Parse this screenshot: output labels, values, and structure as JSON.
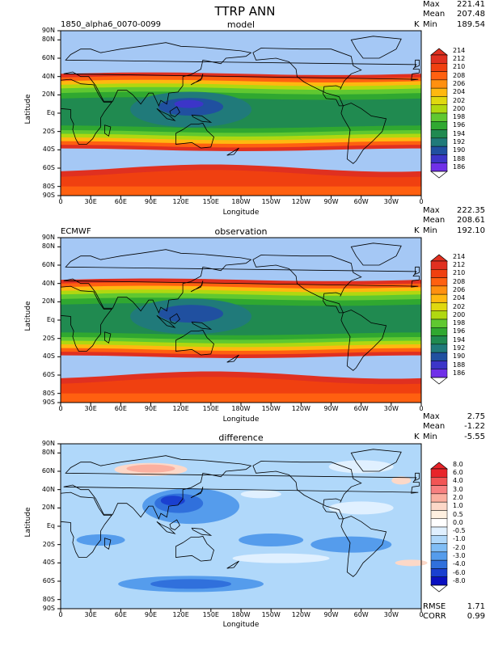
{
  "figure": {
    "title": "TTRP ANN",
    "xlabel": "Longitude",
    "ylabel": "Latitude"
  },
  "chart_data": [
    {
      "type": "heatmap",
      "panel_title": "model",
      "left_label": "1850_alpha6_0070-0099",
      "units": "K",
      "stats": {
        "max_label": "Max",
        "max": "221.41",
        "mean_label": "Mean",
        "mean": "207.48",
        "min_label": "Min",
        "min": "189.54"
      },
      "x_ticks": [
        "0",
        "30E",
        "60E",
        "90E",
        "120E",
        "150E",
        "180W",
        "150W",
        "120W",
        "90W",
        "60W",
        "30W",
        "0"
      ],
      "y_ticks": [
        "90N",
        "80N",
        "60N",
        "40N",
        "20N",
        "Eq",
        "20S",
        "40S",
        "60S",
        "80S",
        "90S"
      ],
      "colorbar": [
        "214",
        "212",
        "210",
        "208",
        "206",
        "204",
        "202",
        "200",
        "198",
        "196",
        "194",
        "192",
        "190",
        "188",
        "186"
      ],
      "colors": [
        "#a5c8f5",
        "#e03020",
        "#f04010",
        "#ff6010",
        "#ff9010",
        "#ffb810",
        "#e0d810",
        "#b0d810",
        "#60c830",
        "#30a830",
        "#208a50",
        "#207a7a",
        "#2050a0",
        "#3c35c8",
        "#7030e8"
      ]
    },
    {
      "type": "heatmap",
      "panel_title": "observation",
      "left_label": "ECMWF",
      "units": "K",
      "stats": {
        "max_label": "Max",
        "max": "222.35",
        "mean_label": "Mean",
        "mean": "208.61",
        "min_label": "Min",
        "min": "192.10"
      },
      "x_ticks": [
        "0",
        "30E",
        "60E",
        "90E",
        "120E",
        "150E",
        "180W",
        "150W",
        "120W",
        "90W",
        "60W",
        "30W",
        "0"
      ],
      "y_ticks": [
        "90N",
        "80N",
        "60N",
        "40N",
        "20N",
        "Eq",
        "20S",
        "40S",
        "60S",
        "80S",
        "90S"
      ],
      "colorbar": [
        "214",
        "212",
        "210",
        "208",
        "206",
        "204",
        "202",
        "200",
        "198",
        "196",
        "194",
        "192",
        "190",
        "188",
        "186"
      ]
    },
    {
      "type": "heatmap",
      "panel_title": "difference",
      "units": "K",
      "stats": {
        "max_label": "Max",
        "max": "2.75",
        "mean_label": "Mean",
        "mean": "-1.22",
        "min_label": "Min",
        "min": "-5.55",
        "rmse_label": "RMSE",
        "rmse": "1.71",
        "corr_label": "CORR",
        "corr": "0.99"
      },
      "x_ticks": [
        "0",
        "30E",
        "60E",
        "90E",
        "120E",
        "150E",
        "180W",
        "150W",
        "120W",
        "90W",
        "60W",
        "30W",
        "0"
      ],
      "y_ticks": [
        "90N",
        "80N",
        "60N",
        "40N",
        "20N",
        "Eq",
        "20S",
        "40S",
        "60S",
        "80S",
        "90S"
      ],
      "colorbar": [
        "8.0",
        "6.0",
        "4.0",
        "3.0",
        "2.0",
        "1.0",
        "0.5",
        "0.0",
        "-0.5",
        "-1.0",
        "-2.0",
        "-3.0",
        "-4.0",
        "-6.0",
        "-8.0"
      ],
      "colors": [
        "#e8242a",
        "#f25555",
        "#f88080",
        "#fbb0a0",
        "#fcd8c8",
        "#fff0e0",
        "#ffffff",
        "#e0f0ff",
        "#b0d8fa",
        "#80bdf5",
        "#559cec",
        "#3070dc",
        "#1a40d0",
        "#0a10c0"
      ]
    }
  ]
}
